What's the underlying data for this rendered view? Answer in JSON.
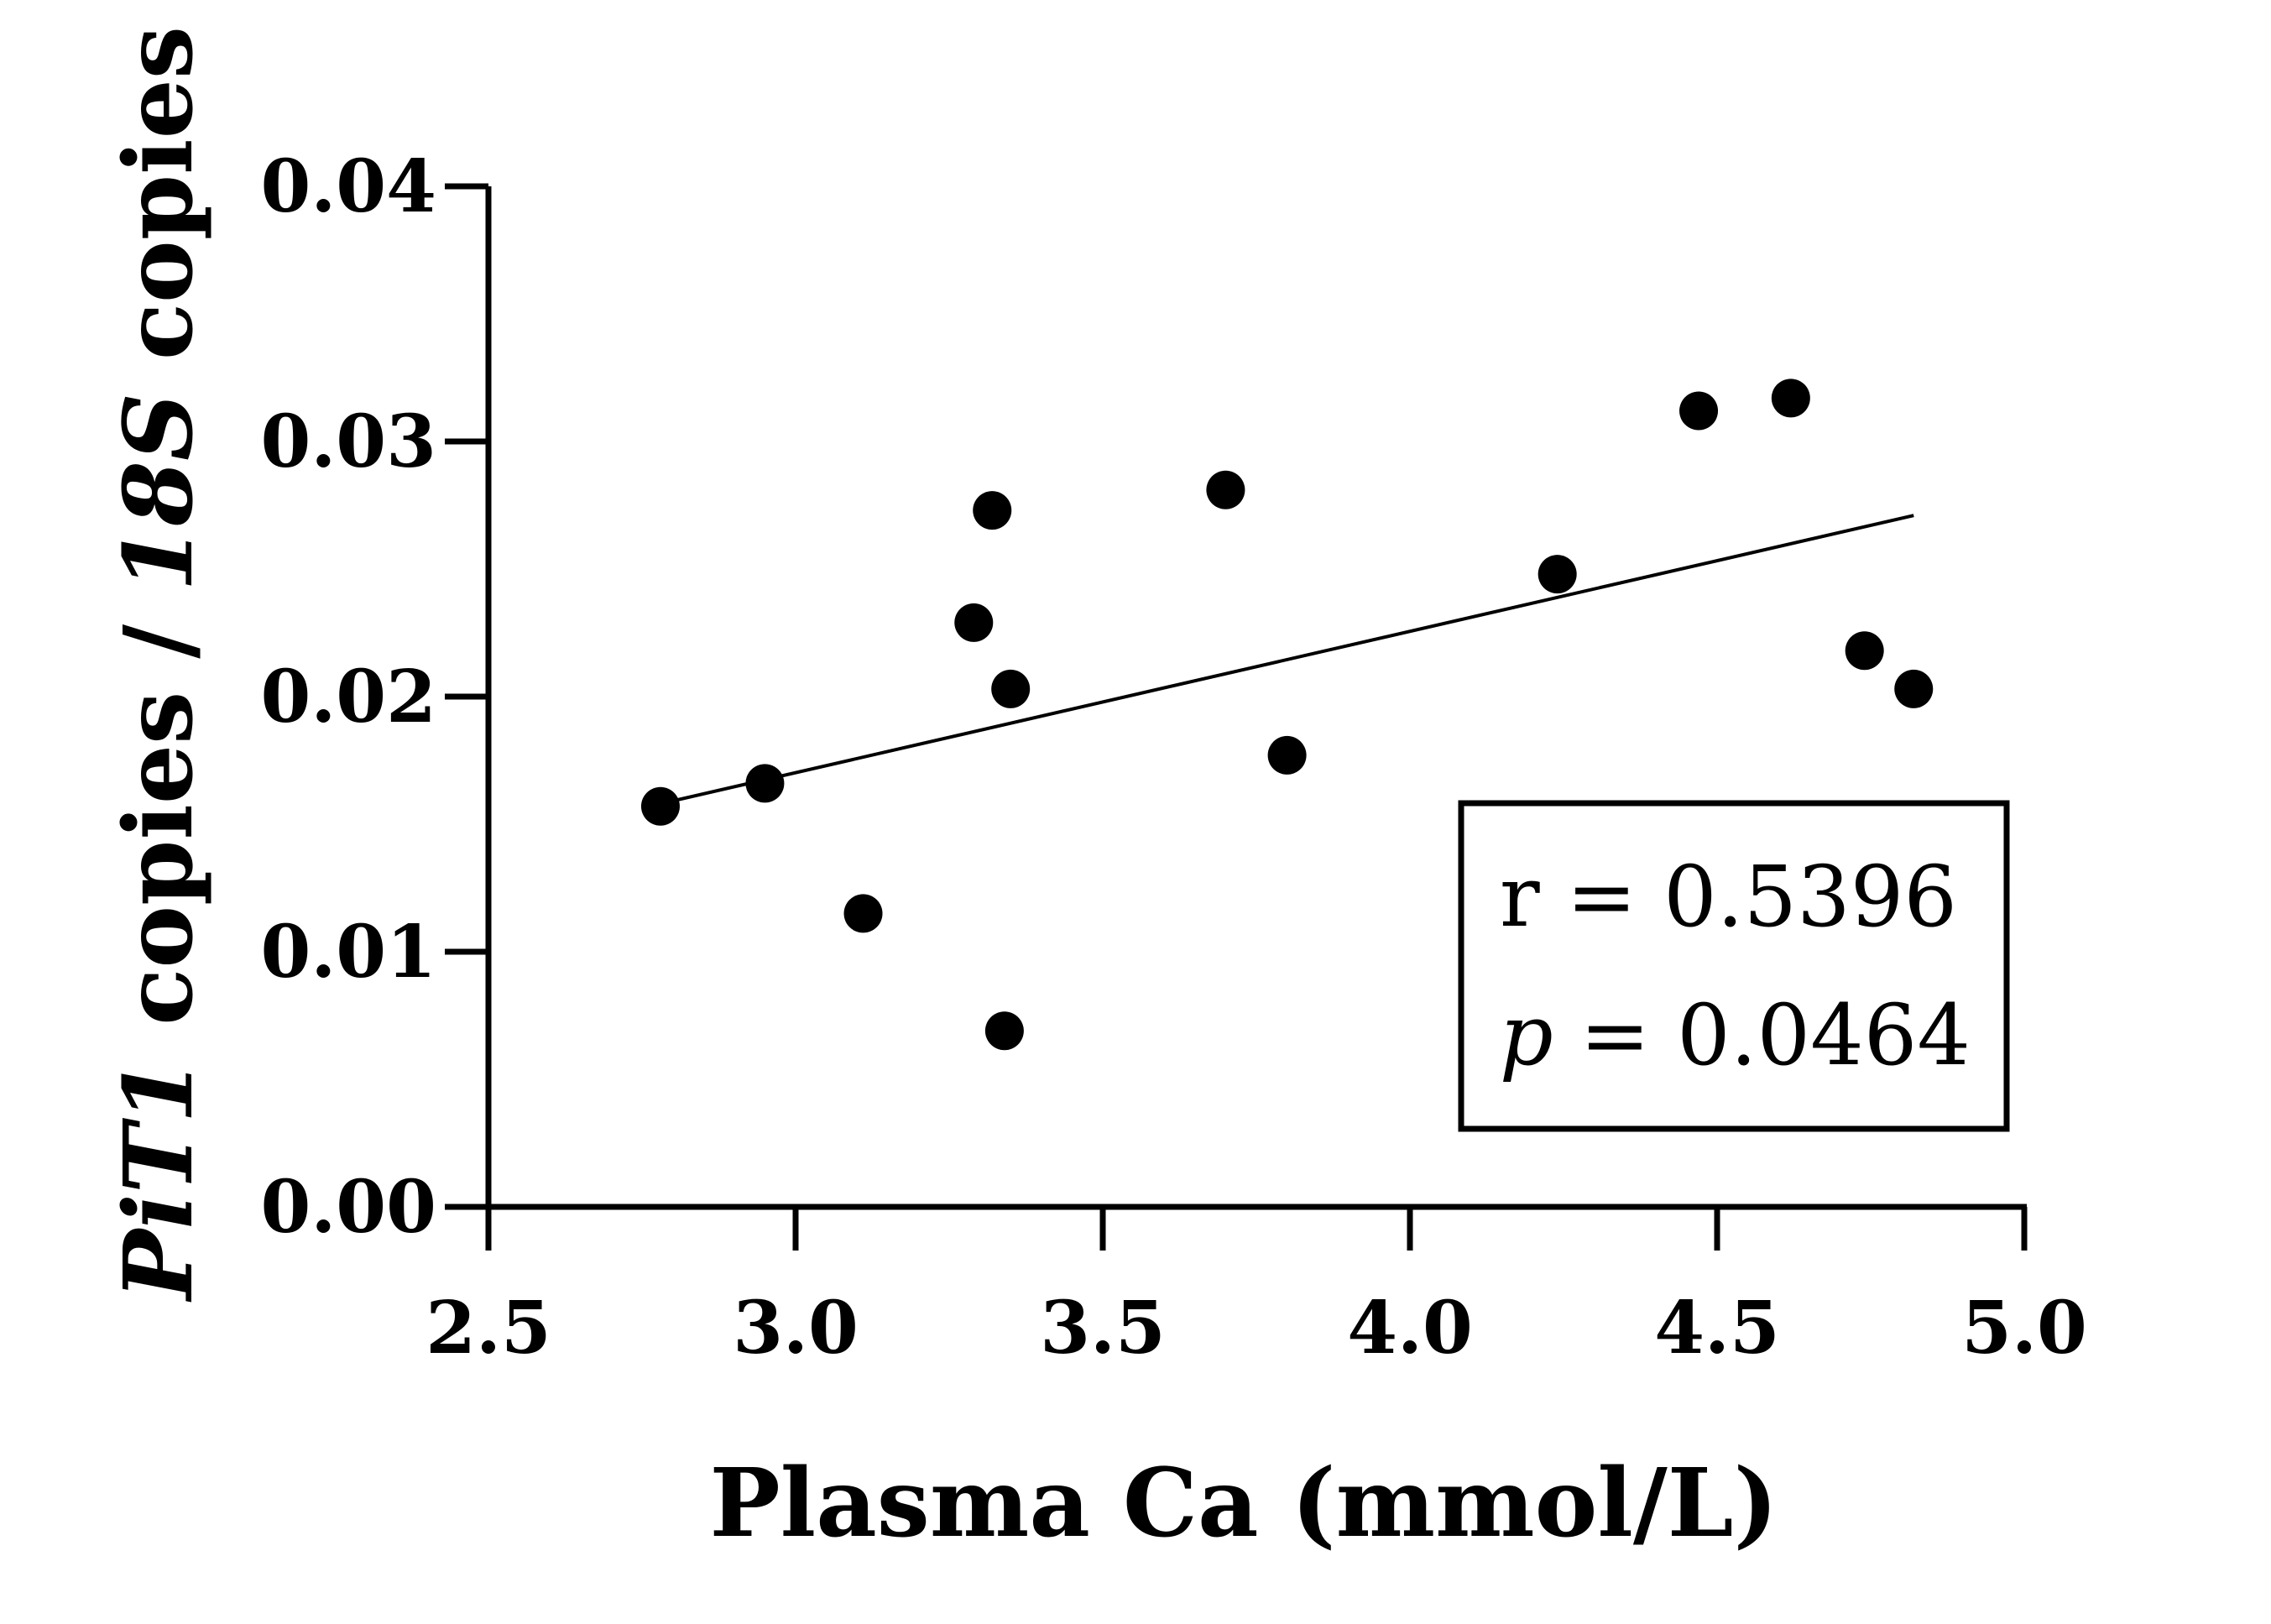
{
  "chart_data": {
    "type": "scatter",
    "title": "",
    "xlabel": "Plasma Ca (mmol/L)",
    "ylabel": {
      "part1_italic": "PiT1",
      "part2": " copies / ",
      "part3_italic": "18S",
      "part4": " copies"
    },
    "xlim": [
      2.5,
      5.0
    ],
    "ylim": [
      0.0,
      0.04
    ],
    "xticks": [
      "2.5",
      "3.0",
      "3.5",
      "4.0",
      "4.5",
      "5.0"
    ],
    "yticks": [
      "0.00",
      "0.01",
      "0.02",
      "0.03",
      "0.04"
    ],
    "points": [
      {
        "x": 2.78,
        "y": 0.0157
      },
      {
        "x": 2.95,
        "y": 0.0166
      },
      {
        "x": 3.11,
        "y": 0.0115
      },
      {
        "x": 3.29,
        "y": 0.0229
      },
      {
        "x": 3.32,
        "y": 0.0273
      },
      {
        "x": 3.34,
        "y": 0.0069
      },
      {
        "x": 3.35,
        "y": 0.0203
      },
      {
        "x": 3.7,
        "y": 0.0281
      },
      {
        "x": 3.8,
        "y": 0.0177
      },
      {
        "x": 4.24,
        "y": 0.0248
      },
      {
        "x": 4.47,
        "y": 0.0312
      },
      {
        "x": 4.62,
        "y": 0.0317
      },
      {
        "x": 4.74,
        "y": 0.0218
      },
      {
        "x": 4.82,
        "y": 0.0203
      }
    ],
    "regression_line": {
      "x": [
        2.78,
        4.82
      ],
      "y": [
        0.0158,
        0.0271
      ]
    },
    "stats": {
      "r_label": "r",
      "r_value": "0.5396",
      "p_label": "p",
      "p_value": "0.0464"
    },
    "legend_position": "bottom-right"
  }
}
